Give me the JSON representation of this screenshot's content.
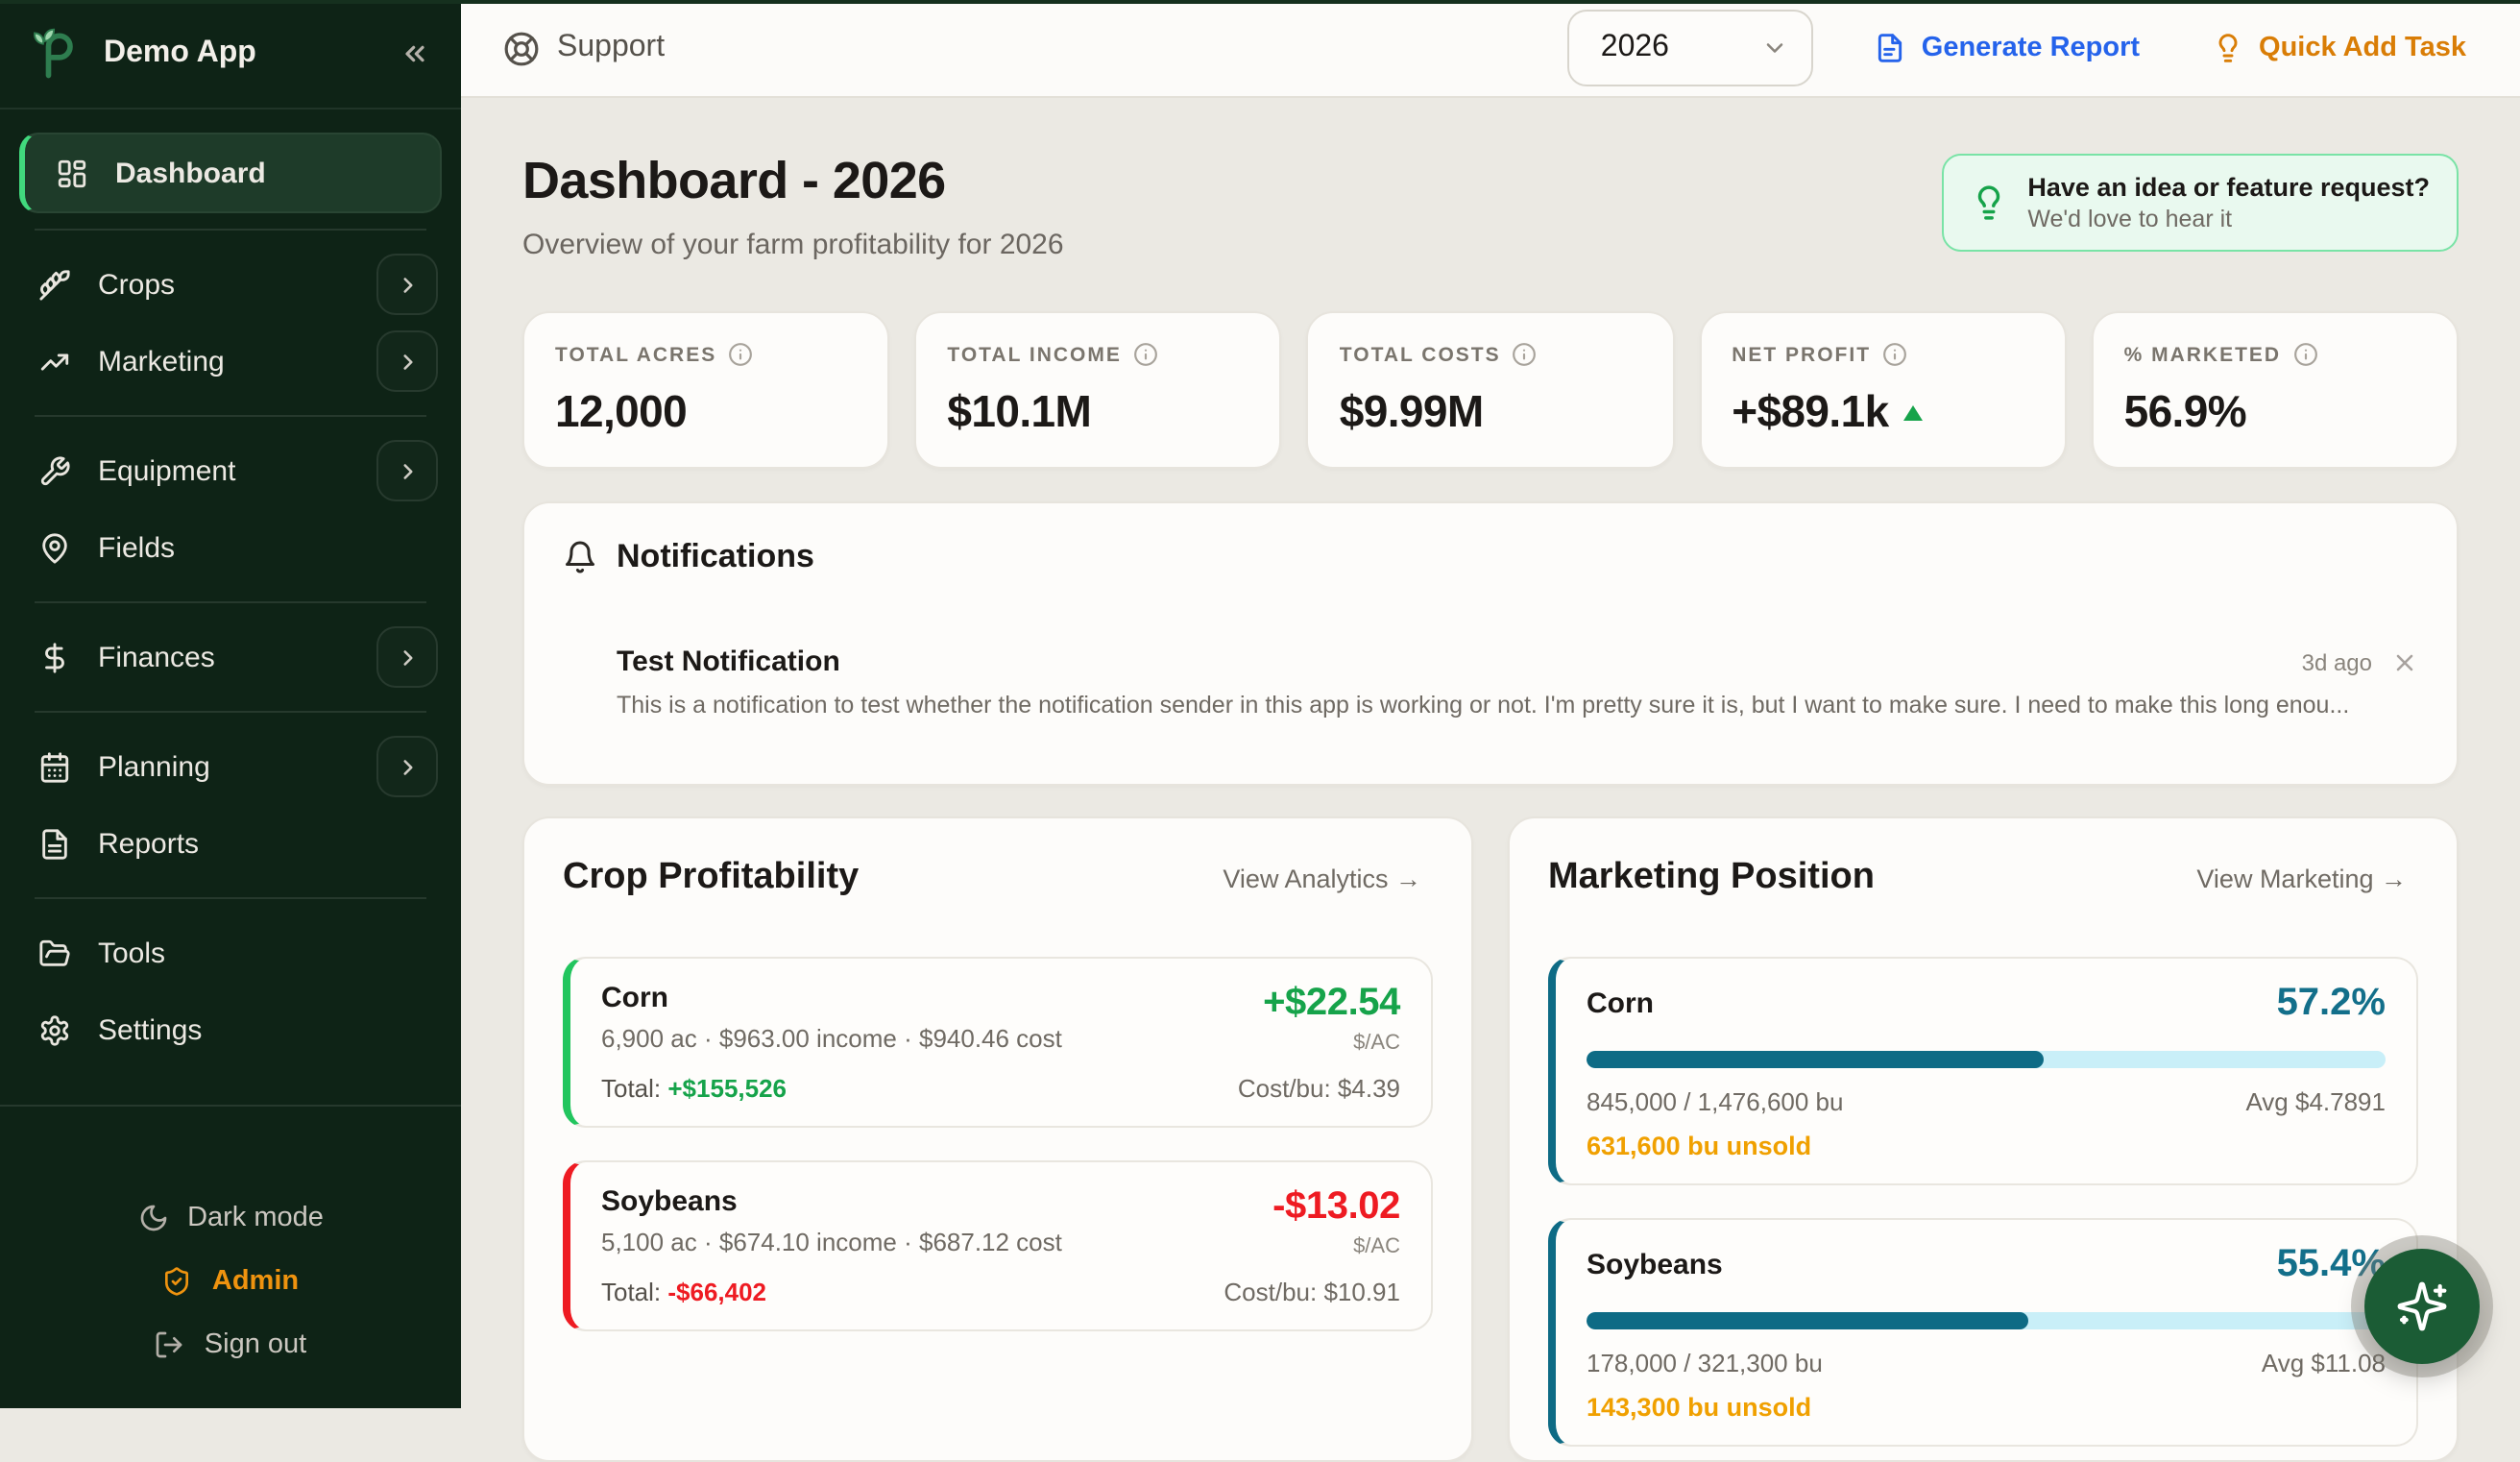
{
  "app": {
    "name": "Demo App"
  },
  "sidebar": {
    "items": [
      {
        "label": "Dashboard"
      },
      {
        "label": "Crops"
      },
      {
        "label": "Marketing"
      },
      {
        "label": "Equipment"
      },
      {
        "label": "Fields"
      },
      {
        "label": "Finances"
      },
      {
        "label": "Planning"
      },
      {
        "label": "Reports"
      },
      {
        "label": "Tools"
      },
      {
        "label": "Settings"
      }
    ],
    "footer": {
      "dark_mode": "Dark mode",
      "admin": "Admin",
      "sign_out": "Sign out"
    }
  },
  "topbar": {
    "support": "Support",
    "year": "2026",
    "generate_report": "Generate Report",
    "quick_add_task": "Quick Add Task"
  },
  "page": {
    "title": "Dashboard - 2026",
    "subtitle": "Overview of your farm profitability for 2026",
    "idea_banner": {
      "title": "Have an idea or feature request?",
      "subtitle": "We'd love to hear it"
    }
  },
  "stats": [
    {
      "label": "TOTAL ACRES",
      "value": "12,000"
    },
    {
      "label": "TOTAL INCOME",
      "value": "$10.1M"
    },
    {
      "label": "TOTAL COSTS",
      "value": "$9.99M"
    },
    {
      "label": "NET PROFIT",
      "value": "+$89.1k",
      "trend": "up"
    },
    {
      "label": "% MARKETED",
      "value": "56.9%"
    }
  ],
  "notifications": {
    "title": "Notifications",
    "items": [
      {
        "title": "Test Notification",
        "body": "This is a notification to test whether the notification sender in this app is working or not. I'm pretty sure it is, but I want to make sure. I need to make this long enou...",
        "time": "3d ago"
      }
    ]
  },
  "crop_profitability": {
    "title": "Crop Profitability",
    "link": "View Analytics →",
    "rows": [
      {
        "name": "Corn",
        "details": "6,900 ac · $963.00 income · $940.46 cost",
        "total_label": "Total: ",
        "total": "+$155,526",
        "per_ac": "+$22.54",
        "per_ac_unit": "$/AC",
        "cost_bu": "Cost/bu: $4.39"
      },
      {
        "name": "Soybeans",
        "details": "5,100 ac · $674.10 income · $687.12 cost",
        "total_label": "Total: ",
        "total": "-$66,402",
        "per_ac": "-$13.02",
        "per_ac_unit": "$/AC",
        "cost_bu": "Cost/bu: $10.91"
      }
    ]
  },
  "marketing_position": {
    "title": "Marketing Position",
    "link": "View Marketing →",
    "rows": [
      {
        "name": "Corn",
        "percent": "57.2%",
        "percent_value": 57.2,
        "sold": "845,000 / 1,476,600 bu",
        "avg": "Avg $4.7891",
        "unsold": "631,600 bu unsold"
      },
      {
        "name": "Soybeans",
        "percent": "55.4%",
        "percent_value": 55.4,
        "sold": "178,000 / 321,300 bu",
        "avg": "Avg $11.08",
        "unsold": "143,300 bu unsold"
      }
    ]
  },
  "colors": {
    "sidebar_bg": "#0e2316",
    "accent_green": "#16a34a",
    "bright_green": "#41d97d",
    "negative_red": "#ee1b22",
    "teal": "#0e6b85",
    "orange": "#f0a000",
    "link_blue": "#2563eb",
    "task_orange": "#d97d06"
  }
}
